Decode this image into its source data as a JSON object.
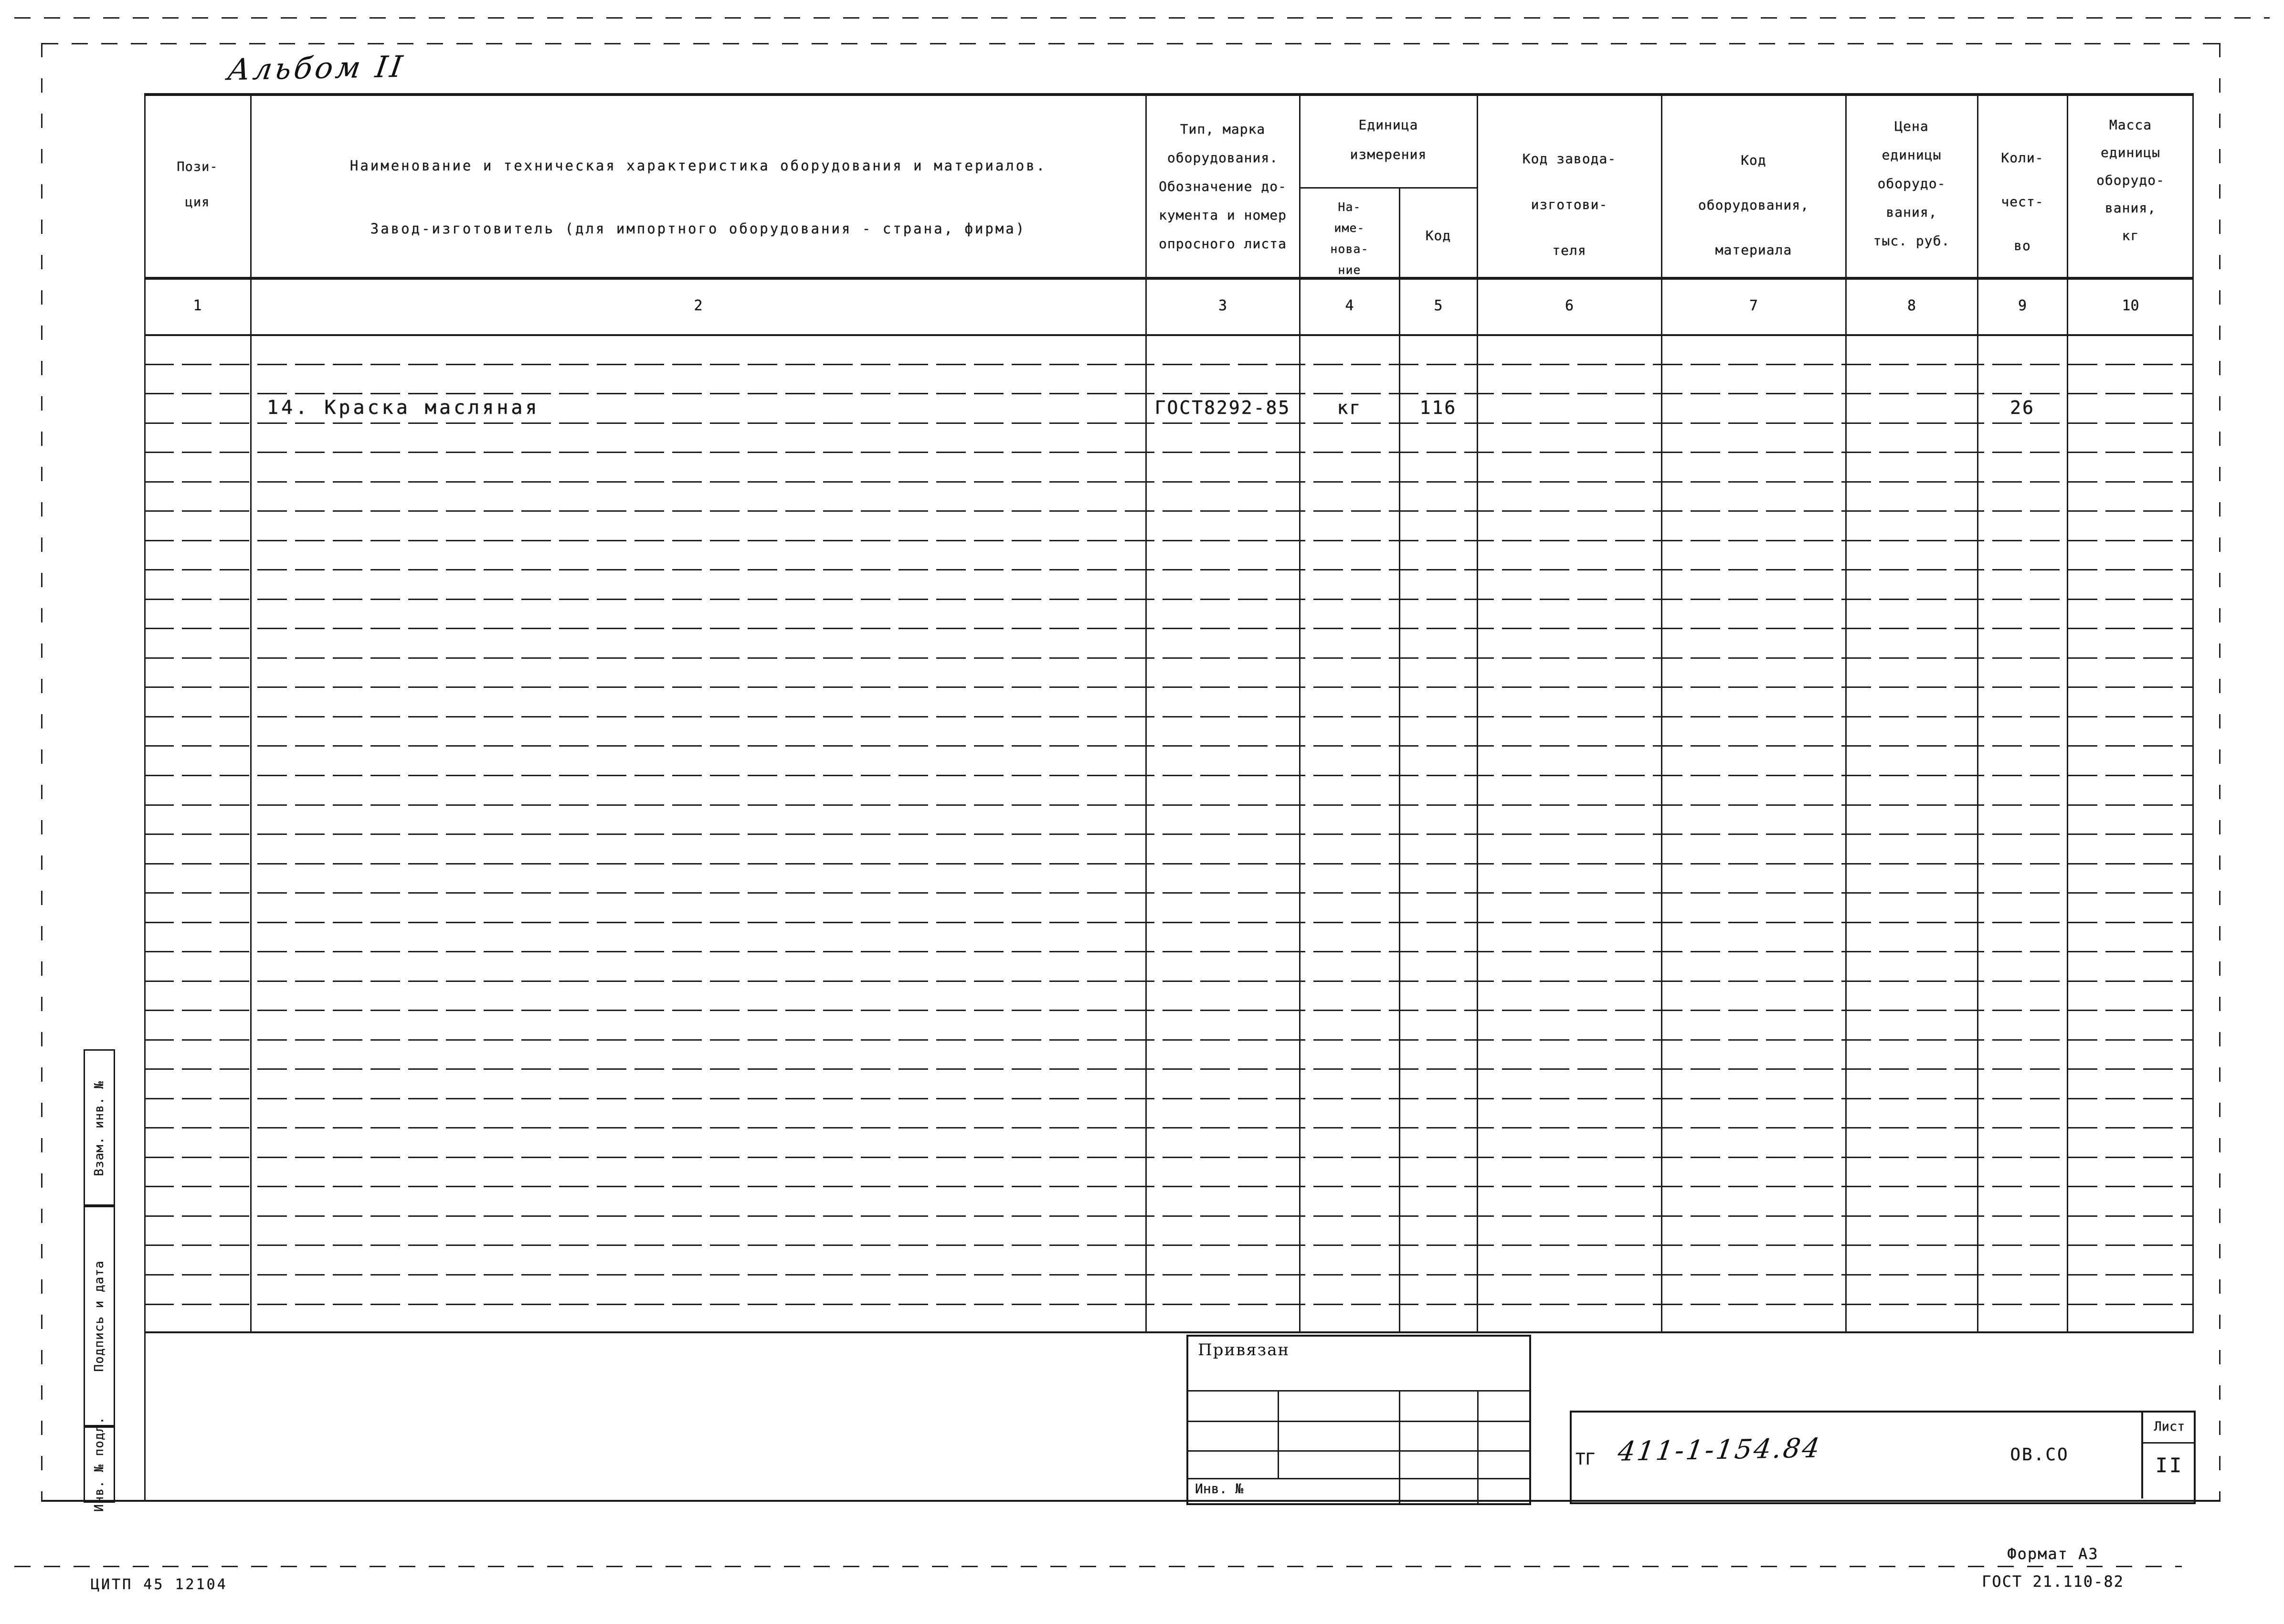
{
  "album_title": "Альбом II",
  "spec_table": {
    "unit_group": "Единица\nизмерения",
    "body_row_count": 34,
    "columns": [
      {
        "id": "position",
        "num": "1",
        "label": "Пози-\nция"
      },
      {
        "id": "name",
        "num": "2",
        "label": "Наименование и техническая характеристика  оборудования и материалов.\nЗавод-изготовитель   (для импортного оборудования -  страна, фирма)"
      },
      {
        "id": "type-mark",
        "num": "3",
        "label": "Тип,  марка\nоборудования.\nОбозначение  до-\nкумента и номер\nопросного листа"
      },
      {
        "id": "unit-name",
        "num": "4",
        "label": "На-\nиме-\nнова-\nние"
      },
      {
        "id": "unit-code",
        "num": "5",
        "label": "Код"
      },
      {
        "id": "factory-code",
        "num": "6",
        "label": "Код  завода-\nизготови-\nтеля"
      },
      {
        "id": "equip-code",
        "num": "7",
        "label": "Код\nоборудования,\nматериала"
      },
      {
        "id": "unit-price",
        "num": "8",
        "label": "Цена\nединицы\nоборудо-\nвания,\nтыс. руб."
      },
      {
        "id": "quantity",
        "num": "9",
        "label": "Коли-\nчест-\nво"
      },
      {
        "id": "unit-mass",
        "num": "10",
        "label": "Масса\nединицы\nоборудо-\nвания,\nкг"
      }
    ],
    "entries": [
      {
        "row_index": 2,
        "position": "",
        "name": "14. Краска масляная",
        "type_mark": "ГОСТ8292-85",
        "unit_name": "кг",
        "unit_code": "116",
        "factory_code": "",
        "equip_code": "",
        "unit_price": "",
        "quantity": "26",
        "unit_mass": ""
      }
    ]
  },
  "margin_labels": {
    "vzam": "Взам. инв. №",
    "podpis": "Подпись и дата",
    "inv_podl": "Инв. № подл."
  },
  "stamp_block": {
    "title": "Привязан",
    "inv_label": "Инв. №"
  },
  "title_block": {
    "series_prefix": "ТГ",
    "series_number": "411-1-154.84",
    "section_code": "ОВ.СО",
    "sheet_label": "Лист",
    "sheet_number": "II"
  },
  "footer": {
    "format": "Формат А3",
    "gost": "ГОСТ 21.110-82",
    "citp": "ЦИТП 45 12104"
  },
  "ink_color": "#171717"
}
